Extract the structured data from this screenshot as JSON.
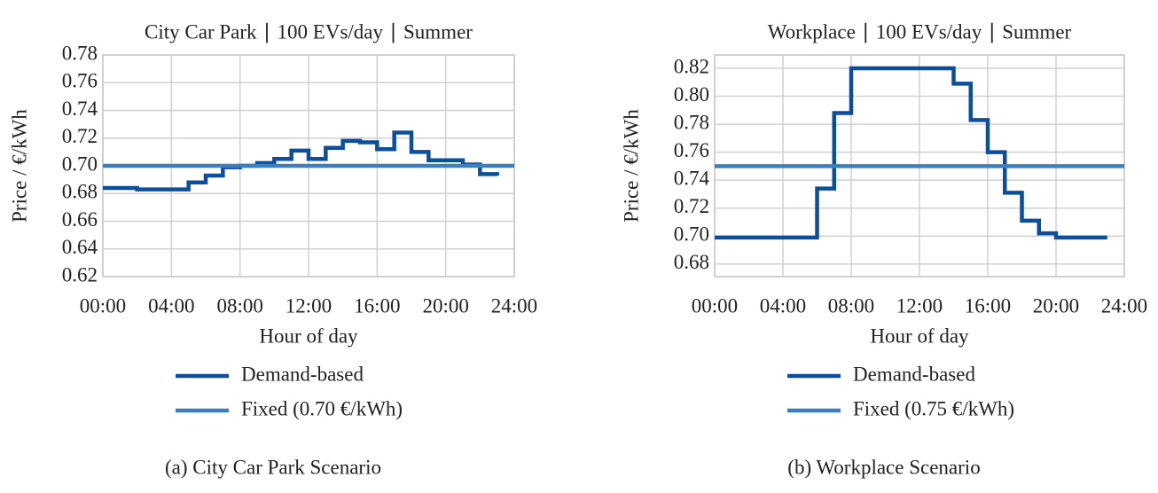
{
  "chart_data": [
    {
      "type": "step",
      "title": "City Car Park ∣ 100 EVs/day ∣ Summer",
      "x_label": "Hour of day",
      "y_label": "Price / €/kWh",
      "caption": "(a) City Car Park Scenario",
      "x": [
        0,
        1,
        2,
        3,
        4,
        5,
        6,
        7,
        8,
        9,
        10,
        11,
        12,
        13,
        14,
        15,
        16,
        17,
        18,
        19,
        20,
        21,
        22,
        23
      ],
      "xlim": [
        0,
        24
      ],
      "xticks": [
        {
          "value": 0,
          "label": "00:00"
        },
        {
          "value": 4,
          "label": "04:00"
        },
        {
          "value": 8,
          "label": "08:00"
        },
        {
          "value": 12,
          "label": "12:00"
        },
        {
          "value": 16,
          "label": "16:00"
        },
        {
          "value": 20,
          "label": "20:00"
        },
        {
          "value": 24,
          "label": "24:00"
        }
      ],
      "ylim": [
        0.62,
        0.78
      ],
      "yticks": [
        0.62,
        0.64,
        0.66,
        0.68,
        {
          "value": 0.7,
          "label": "0.70"
        },
        0.72,
        0.74,
        0.76,
        0.78
      ],
      "grid": true,
      "series": [
        {
          "name": "Demand-based",
          "color": "#0b4f9c",
          "values": [
            0.684,
            0.684,
            0.683,
            0.683,
            0.683,
            0.688,
            0.693,
            0.699,
            0.7,
            0.702,
            0.705,
            0.711,
            0.705,
            0.713,
            0.718,
            0.717,
            0.712,
            0.724,
            0.71,
            0.704,
            0.704,
            0.701,
            0.694,
            0.693
          ]
        },
        {
          "name": "Fixed (0.70 €/kWh)",
          "color": "#3d7fba",
          "value": 0.7
        }
      ]
    },
    {
      "type": "step",
      "title": "Workplace ∣ 100 EVs/day ∣ Summer",
      "x_label": "Hour of day",
      "y_label": "Price / €/kWh",
      "caption": "(b) Workplace Scenario",
      "x": [
        0,
        1,
        2,
        3,
        4,
        5,
        6,
        7,
        8,
        9,
        10,
        11,
        12,
        13,
        14,
        15,
        16,
        17,
        18,
        19,
        20,
        21,
        22,
        23
      ],
      "xlim": [
        0,
        24
      ],
      "xticks": [
        {
          "value": 0,
          "label": "00:00"
        },
        {
          "value": 4,
          "label": "04:00"
        },
        {
          "value": 8,
          "label": "08:00"
        },
        {
          "value": 12,
          "label": "12:00"
        },
        {
          "value": 16,
          "label": "16:00"
        },
        {
          "value": 20,
          "label": "20:00"
        },
        {
          "value": 24,
          "label": "24:00"
        }
      ],
      "ylim": [
        0.671,
        0.8295
      ],
      "yticks": [
        0.68,
        {
          "value": 0.7,
          "label": "0.70"
        },
        0.72,
        0.74,
        0.76,
        0.78,
        {
          "value": 0.8,
          "label": "0.80"
        },
        0.82
      ],
      "grid": true,
      "series": [
        {
          "name": "Demand-based",
          "color": "#0b4f9c",
          "values": [
            0.699,
            0.699,
            0.699,
            0.699,
            0.699,
            0.699,
            0.734,
            0.788,
            0.82,
            0.82,
            0.82,
            0.82,
            0.82,
            0.82,
            0.809,
            0.783,
            0.76,
            0.731,
            0.711,
            0.702,
            0.699,
            0.699,
            0.699,
            0.699
          ]
        },
        {
          "name": "Fixed (0.75 €/kWh)",
          "color": "#3d7fba",
          "value": 0.75
        }
      ]
    }
  ]
}
